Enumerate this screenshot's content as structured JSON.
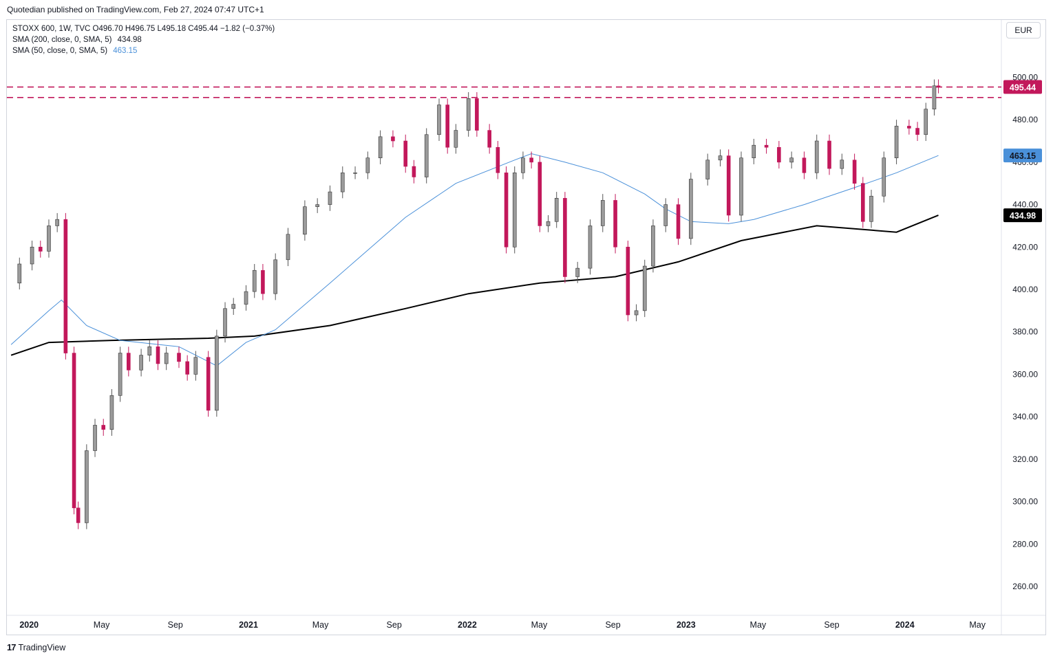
{
  "header": {
    "publisher_text": "Quotedian published on TradingView.com, Feb 27, 2024 07:47 UTC+1"
  },
  "legend": {
    "symbol_line": "STOXX 600, 1W, TVC  O496.70  H496.75  L495.18  C495.44  −1.82 (−0.37%)",
    "sma200_label": "SMA (200, close, 0, SMA, 5)",
    "sma200_value": "434.98",
    "sma50_label": "SMA (50, close, 0, SMA, 5)",
    "sma50_value": "463.15"
  },
  "currency_button": "EUR",
  "footer": {
    "brand_logo": "17",
    "brand_text": "TradingView"
  },
  "colors": {
    "up_candle": "#9a9a9a",
    "down_candle": "#c2185b",
    "sma200": "#000000",
    "sma50": "#4a90d9",
    "resistance_line": "#c2185b"
  },
  "chart_data": {
    "type": "candlestick",
    "title": "STOXX 600, 1W, TVC",
    "x_axis_labels": [
      "2020",
      "May",
      "Sep",
      "2021",
      "May",
      "Sep",
      "2022",
      "May",
      "Sep",
      "2023",
      "May",
      "Sep",
      "2024",
      "May"
    ],
    "y_axis_ticks": [
      "260.00",
      "280.00",
      "300.00",
      "320.00",
      "340.00",
      "360.00",
      "380.00",
      "400.00",
      "420.00",
      "440.00",
      "460.00",
      "480.00",
      "500.00"
    ],
    "ylim": [
      248,
      517
    ],
    "price_labels": {
      "last_close": "495.44",
      "sma50": "463.15",
      "sma200": "434.98"
    },
    "horizontal_lines": [
      495.44,
      490.5
    ],
    "series": [
      {
        "name": "Price (weekly close)",
        "kind": "line_of_closes",
        "points": [
          [
            "2019-12-02",
            403
          ],
          [
            "2019-12-16",
            412
          ],
          [
            "2020-01-06",
            420
          ],
          [
            "2020-01-20",
            418
          ],
          [
            "2020-02-03",
            430
          ],
          [
            "2020-02-17",
            433
          ],
          [
            "2020-03-02",
            370
          ],
          [
            "2020-03-16",
            297
          ],
          [
            "2020-03-23",
            290
          ],
          [
            "2020-04-06",
            324
          ],
          [
            "2020-04-20",
            336
          ],
          [
            "2020-05-04",
            334
          ],
          [
            "2020-05-18",
            350
          ],
          [
            "2020-06-01",
            370
          ],
          [
            "2020-06-15",
            362
          ],
          [
            "2020-07-06",
            369
          ],
          [
            "2020-07-20",
            373
          ],
          [
            "2020-08-03",
            365
          ],
          [
            "2020-08-17",
            370
          ],
          [
            "2020-09-07",
            366
          ],
          [
            "2020-09-21",
            360
          ],
          [
            "2020-10-05",
            368
          ],
          [
            "2020-10-26",
            343
          ],
          [
            "2020-11-09",
            378
          ],
          [
            "2020-11-23",
            391
          ],
          [
            "2020-12-07",
            393
          ],
          [
            "2020-12-28",
            399
          ],
          [
            "2021-01-11",
            409
          ],
          [
            "2021-01-25",
            398
          ],
          [
            "2021-02-15",
            414
          ],
          [
            "2021-03-08",
            426
          ],
          [
            "2021-04-05",
            439
          ],
          [
            "2021-04-26",
            440
          ],
          [
            "2021-05-17",
            446
          ],
          [
            "2021-06-07",
            455
          ],
          [
            "2021-06-28",
            455
          ],
          [
            "2021-07-19",
            462
          ],
          [
            "2021-08-09",
            472
          ],
          [
            "2021-08-30",
            470
          ],
          [
            "2021-09-20",
            458
          ],
          [
            "2021-10-04",
            453
          ],
          [
            "2021-10-25",
            473
          ],
          [
            "2021-11-15",
            487
          ],
          [
            "2021-11-29",
            467
          ],
          [
            "2021-12-13",
            475
          ],
          [
            "2022-01-03",
            490
          ],
          [
            "2022-01-17",
            475
          ],
          [
            "2022-02-07",
            467
          ],
          [
            "2022-02-21",
            455
          ],
          [
            "2022-03-07",
            420
          ],
          [
            "2022-03-21",
            455
          ],
          [
            "2022-04-04",
            462
          ],
          [
            "2022-04-18",
            460
          ],
          [
            "2022-05-02",
            430
          ],
          [
            "2022-05-16",
            432
          ],
          [
            "2022-05-30",
            443
          ],
          [
            "2022-06-13",
            406
          ],
          [
            "2022-07-04",
            410
          ],
          [
            "2022-07-25",
            430
          ],
          [
            "2022-08-15",
            442
          ],
          [
            "2022-09-05",
            420
          ],
          [
            "2022-09-26",
            388
          ],
          [
            "2022-10-10",
            390
          ],
          [
            "2022-10-24",
            411
          ],
          [
            "2022-11-07",
            430
          ],
          [
            "2022-11-28",
            440
          ],
          [
            "2022-12-19",
            424
          ],
          [
            "2023-01-09",
            452
          ],
          [
            "2023-02-06",
            461
          ],
          [
            "2023-02-27",
            463
          ],
          [
            "2023-03-13",
            435
          ],
          [
            "2023-04-03",
            462
          ],
          [
            "2023-04-24",
            468
          ],
          [
            "2023-05-15",
            467
          ],
          [
            "2023-06-05",
            460
          ],
          [
            "2023-06-26",
            462
          ],
          [
            "2023-07-17",
            455
          ],
          [
            "2023-08-07",
            470
          ],
          [
            "2023-08-28",
            457
          ],
          [
            "2023-09-18",
            461
          ],
          [
            "2023-10-09",
            450
          ],
          [
            "2023-10-23",
            432
          ],
          [
            "2023-11-06",
            444
          ],
          [
            "2023-11-27",
            462
          ],
          [
            "2023-12-18",
            477
          ],
          [
            "2024-01-08",
            476
          ],
          [
            "2024-01-22",
            473
          ],
          [
            "2024-02-05",
            485
          ],
          [
            "2024-02-19",
            496
          ],
          [
            "2024-02-26",
            495.44
          ]
        ]
      },
      {
        "name": "SMA (50, close, 0, SMA, 5)",
        "points": [
          [
            "2019-12-02",
            374
          ],
          [
            "2020-02-03",
            390
          ],
          [
            "2020-02-24",
            395
          ],
          [
            "2020-04-06",
            383
          ],
          [
            "2020-06-01",
            376
          ],
          [
            "2020-09-07",
            373
          ],
          [
            "2020-10-26",
            366
          ],
          [
            "2020-11-09",
            364
          ],
          [
            "2020-12-28",
            375
          ],
          [
            "2021-02-15",
            381
          ],
          [
            "2021-05-17",
            403
          ],
          [
            "2021-09-20",
            434
          ],
          [
            "2021-12-13",
            450
          ],
          [
            "2022-03-21",
            461
          ],
          [
            "2022-04-18",
            464
          ],
          [
            "2022-06-13",
            460
          ],
          [
            "2022-08-15",
            455
          ],
          [
            "2022-10-24",
            445
          ],
          [
            "2022-11-28",
            438
          ],
          [
            "2023-01-09",
            432
          ],
          [
            "2023-03-13",
            431
          ],
          [
            "2023-04-24",
            433
          ],
          [
            "2023-07-17",
            440
          ],
          [
            "2023-10-09",
            448
          ],
          [
            "2023-12-18",
            455
          ],
          [
            "2024-02-26",
            463.15
          ]
        ]
      },
      {
        "name": "SMA (200, close, 0, SMA, 5)",
        "points": [
          [
            "2019-12-02",
            369
          ],
          [
            "2020-02-03",
            375
          ],
          [
            "2020-05-18",
            376
          ],
          [
            "2020-10-26",
            377
          ],
          [
            "2021-01-11",
            378
          ],
          [
            "2021-05-17",
            383
          ],
          [
            "2021-09-20",
            391
          ],
          [
            "2022-01-03",
            398
          ],
          [
            "2022-05-02",
            403
          ],
          [
            "2022-09-05",
            406
          ],
          [
            "2022-12-19",
            413
          ],
          [
            "2023-04-03",
            423
          ],
          [
            "2023-08-07",
            430
          ],
          [
            "2023-12-18",
            427
          ],
          [
            "2024-02-26",
            434.98
          ]
        ]
      }
    ],
    "grid": false,
    "legend_position": "top-left"
  }
}
